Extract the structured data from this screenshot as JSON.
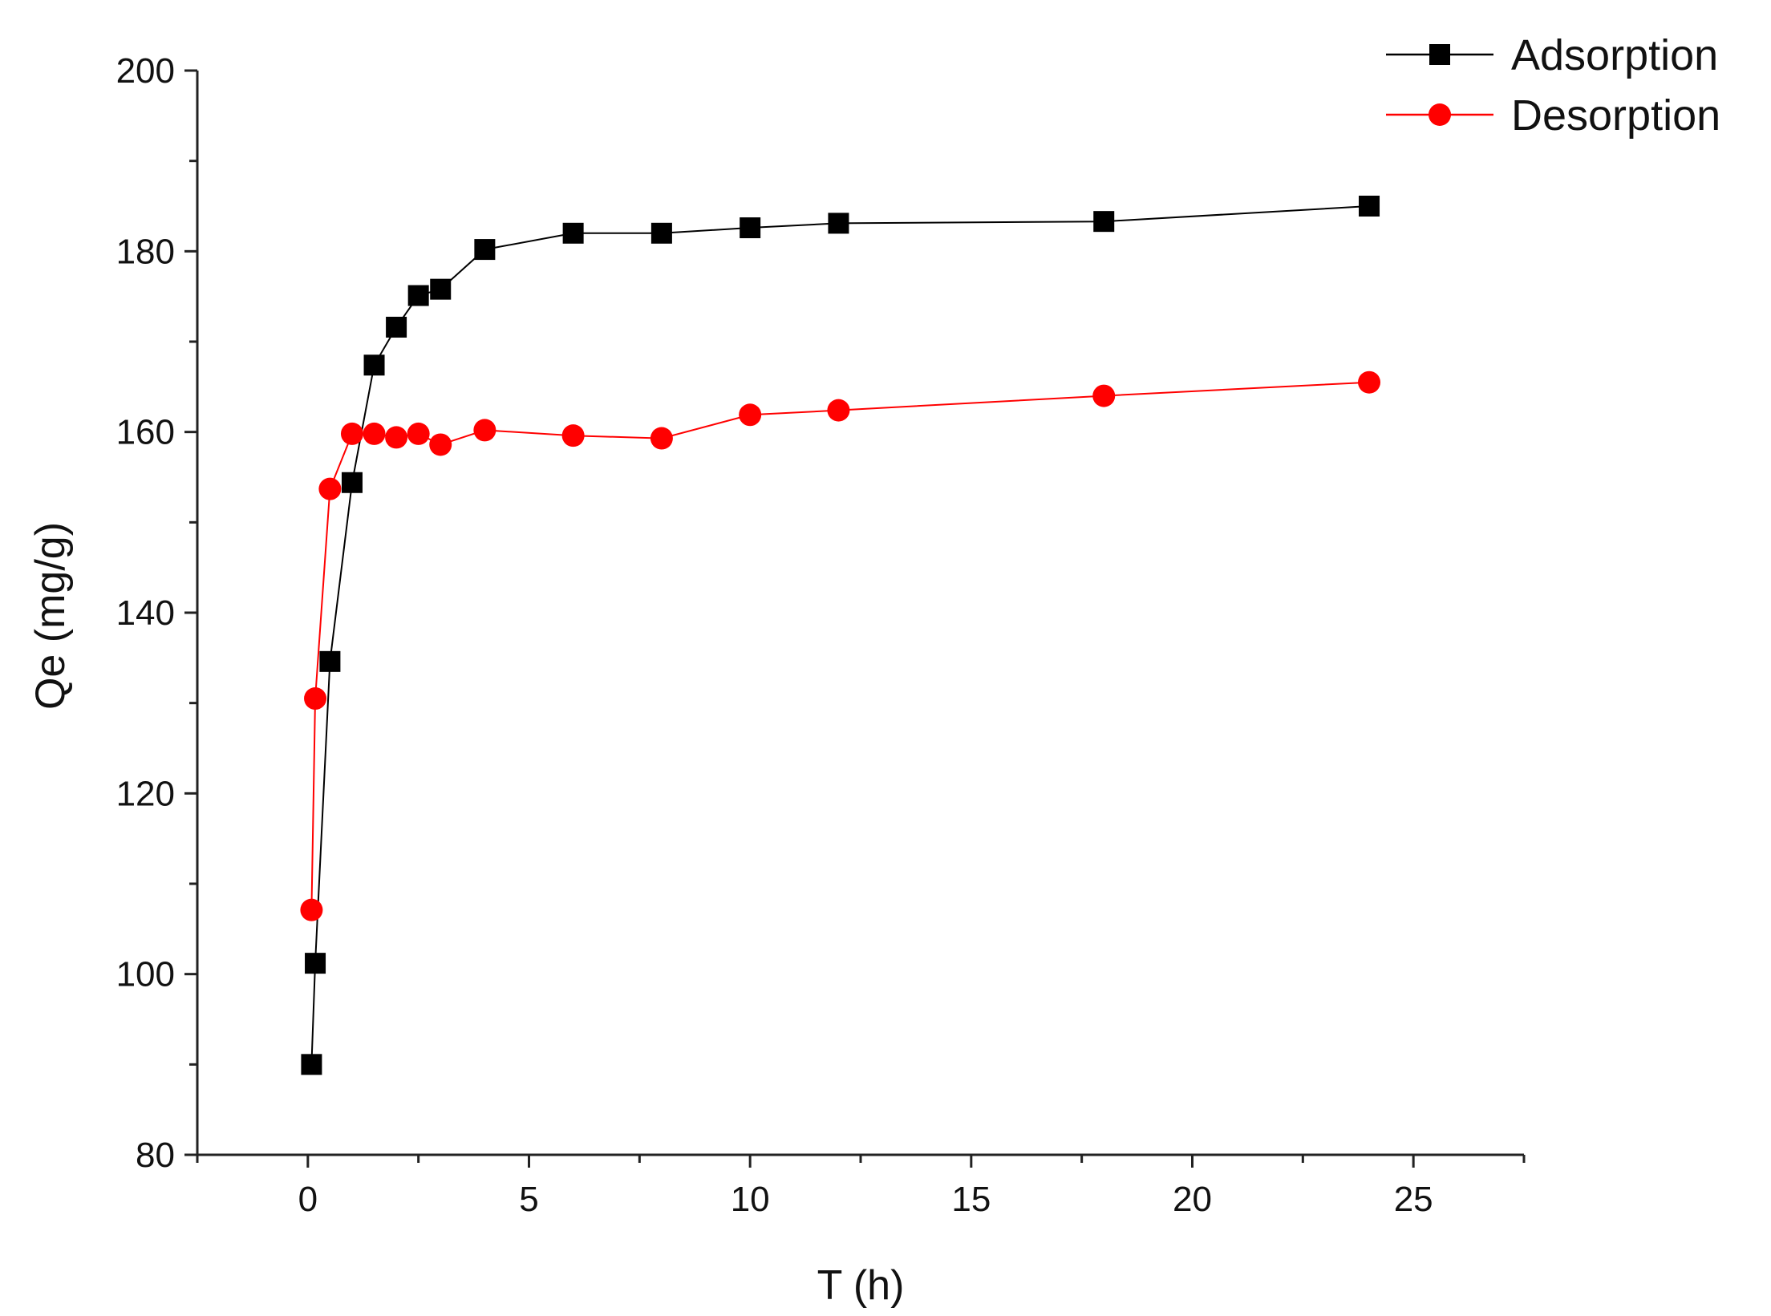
{
  "chart_data": {
    "type": "line",
    "title": "",
    "xlabel": "T (h)",
    "ylabel": "Qe (mg/g)",
    "xlim": [
      -2.5,
      27.5
    ],
    "ylim": [
      80,
      200
    ],
    "xticks": [
      0,
      5,
      10,
      15,
      20,
      25
    ],
    "yticks": [
      80,
      100,
      120,
      140,
      160,
      180,
      200
    ],
    "xtick_labels": [
      "0",
      "5",
      "10",
      "15",
      "20",
      "25"
    ],
    "ytick_labels": [
      "80",
      "100",
      "120",
      "140",
      "160",
      "180",
      "200"
    ],
    "grid": false,
    "legend_position": "top-right",
    "series": [
      {
        "name": "Adsorption",
        "color": "#000000",
        "marker": "square",
        "x": [
          0.083,
          0.167,
          0.5,
          1,
          1.5,
          2,
          2.5,
          3,
          4,
          6,
          8,
          10,
          12,
          18,
          24
        ],
        "y": [
          90,
          101.2,
          134.6,
          154.4,
          167.4,
          171.6,
          175.1,
          175.8,
          180.2,
          182.0,
          182.0,
          182.6,
          183.1,
          183.3,
          185.0
        ]
      },
      {
        "name": "Desorption",
        "color": "#ff0000",
        "marker": "circle",
        "x": [
          0.083,
          0.167,
          0.5,
          1,
          1.5,
          2,
          2.5,
          3,
          4,
          6,
          8,
          10,
          12,
          18,
          24
        ],
        "y": [
          107.1,
          130.5,
          153.7,
          159.8,
          159.8,
          159.4,
          159.8,
          158.6,
          160.2,
          159.6,
          159.3,
          161.9,
          162.4,
          164.0,
          165.5
        ]
      }
    ]
  }
}
